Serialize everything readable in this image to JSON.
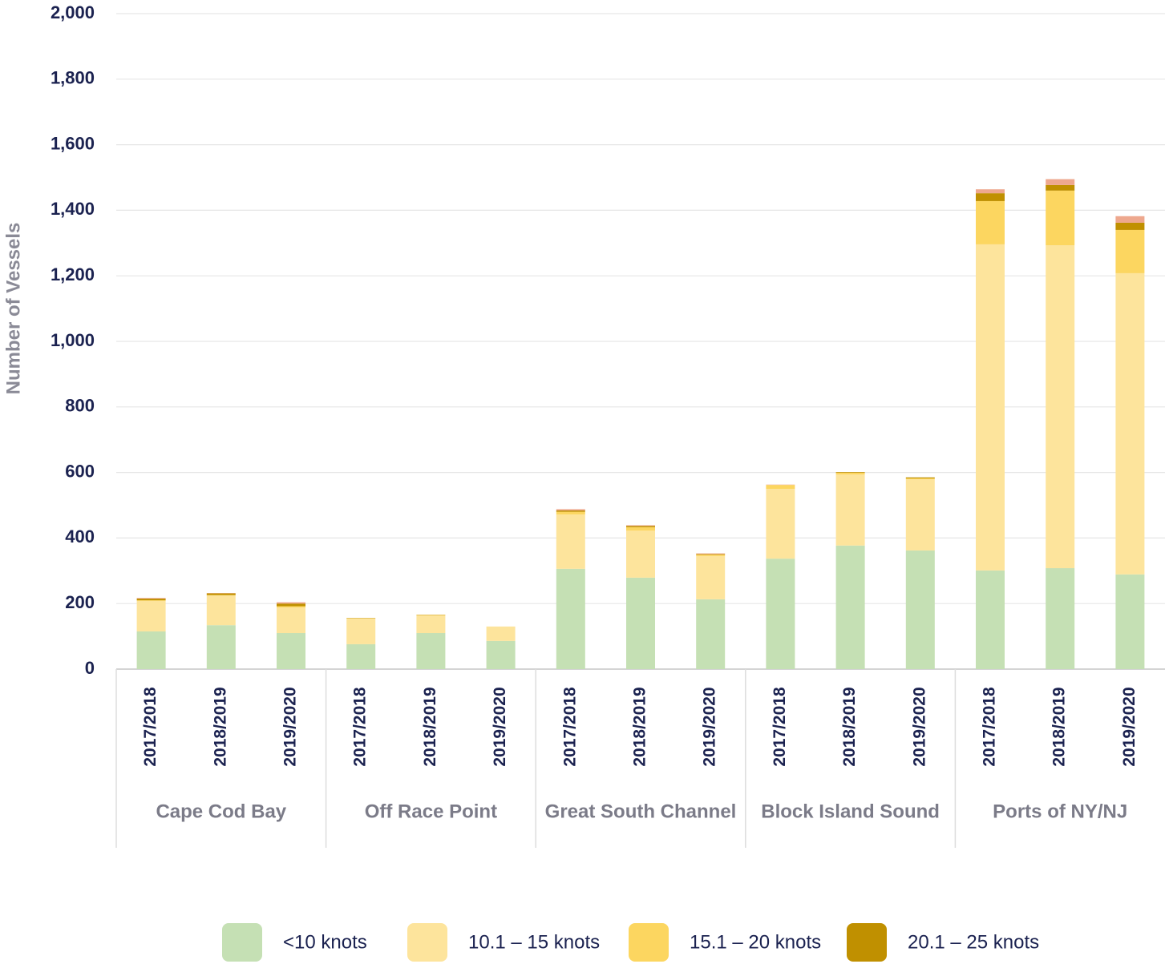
{
  "chart_data": {
    "type": "stacked-bar",
    "y_label": "Number of Vessels",
    "categories": [
      "2017/2018",
      "2018/2019",
      "2019/2020",
      "2017/2018",
      "2018/2019",
      "2019/2020",
      "2017/2018",
      "2018/2019",
      "2019/2020",
      "2017/2018",
      "2018/2019",
      "2019/2020",
      "2017/2018",
      "2018/2019",
      "2019/2020"
    ],
    "groups": [
      "Cape Cod Bay",
      "Off Race Point",
      "Great South Channel",
      "Block Island Sound",
      "Ports of NY/NJ"
    ],
    "series": [
      {
        "name": "<10 knots",
        "color": "#c5e0b4",
        "values": [
          115,
          134,
          110,
          76,
          110,
          86,
          306,
          279,
          213,
          337,
          377,
          362,
          301,
          308,
          289
        ]
      },
      {
        "name": "10.1 – 15 knots",
        "color": "#fde49c",
        "values": [
          93,
          91,
          78,
          78,
          54,
          44,
          166,
          144,
          132,
          213,
          217,
          217,
          995,
          985,
          919
        ]
      },
      {
        "name": "15.1 – 20 knots",
        "color": "#fcd660",
        "values": [
          2,
          1,
          4,
          1,
          1,
          0,
          8,
          10,
          4,
          12,
          5,
          3,
          132,
          167,
          132
        ]
      },
      {
        "name": "20.1 – 25 knots",
        "color": "#c09000",
        "values": [
          5,
          5,
          8,
          1,
          1,
          0,
          4,
          4,
          2,
          0,
          2,
          3,
          24,
          17,
          22
        ]
      },
      {
        "color": "#eea88e",
        "values": [
          2,
          1,
          4,
          0,
          0,
          0,
          4,
          2,
          2,
          1,
          0,
          0,
          12,
          18,
          20
        ]
      }
    ],
    "ylim": [
      0,
      2000
    ],
    "yticks": [
      0,
      200,
      400,
      600,
      800,
      {
        "value": 1000,
        "label": "1,000"
      },
      {
        "value": 1200,
        "label": "1,200"
      },
      {
        "value": 1400,
        "label": "1,400"
      },
      {
        "value": 1600,
        "label": "1,600"
      },
      {
        "value": 1800,
        "label": "1,800"
      },
      {
        "value": 2000,
        "label": "2,000"
      }
    ],
    "grid": true
  }
}
